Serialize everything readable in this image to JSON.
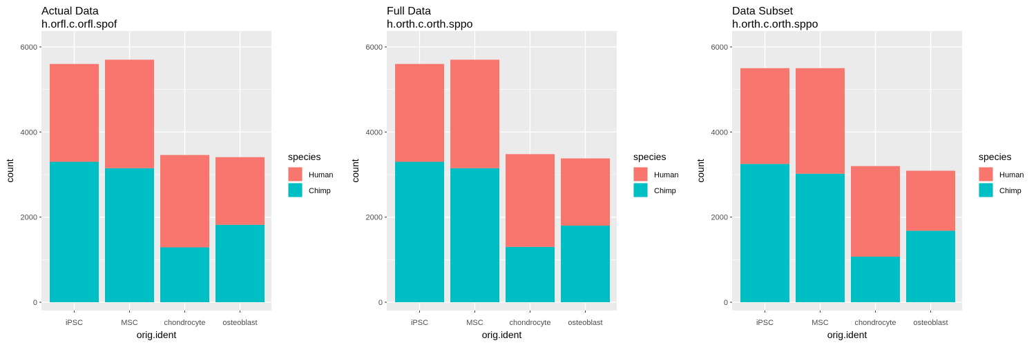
{
  "chart_data": [
    {
      "type": "bar",
      "stacked": true,
      "title": "Actual Data",
      "subtitle": "h.orfl.c.orfl.spof",
      "xlabel": "orig.ident",
      "ylabel": "count",
      "categories": [
        "iPSC",
        "MSC",
        "chondrocyte",
        "osteoblast"
      ],
      "series": [
        {
          "name": "Human",
          "values": [
            2300,
            2550,
            2170,
            1590
          ]
        },
        {
          "name": "Chimp",
          "values": [
            3300,
            3150,
            1290,
            1820
          ]
        }
      ],
      "ylim": [
        0,
        6000
      ],
      "yticks": [
        0,
        2000,
        4000,
        6000
      ],
      "legend_title": "species",
      "legend_position": "right",
      "grid": true
    },
    {
      "type": "bar",
      "stacked": true,
      "title": "Full Data",
      "subtitle": "h.orth.c.orth.sppo",
      "xlabel": "orig.ident",
      "ylabel": "count",
      "categories": [
        "iPSC",
        "MSC",
        "chondrocyte",
        "osteoblast"
      ],
      "series": [
        {
          "name": "Human",
          "values": [
            2300,
            2550,
            2180,
            1580
          ]
        },
        {
          "name": "Chimp",
          "values": [
            3300,
            3150,
            1300,
            1800
          ]
        }
      ],
      "ylim": [
        0,
        6000
      ],
      "yticks": [
        0,
        2000,
        4000,
        6000
      ],
      "legend_title": "species",
      "legend_position": "right",
      "grid": true
    },
    {
      "type": "bar",
      "stacked": true,
      "title": "Data Subset",
      "subtitle": "h.orth.c.orth.sppo",
      "xlabel": "orig.ident",
      "ylabel": "count",
      "categories": [
        "iPSC",
        "MSC",
        "chondrocyte",
        "osteoblast"
      ],
      "series": [
        {
          "name": "Human",
          "values": [
            2250,
            2480,
            2130,
            1410
          ]
        },
        {
          "name": "Chimp",
          "values": [
            3250,
            3020,
            1070,
            1680
          ]
        }
      ],
      "ylim": [
        0,
        6000
      ],
      "yticks": [
        0,
        2000,
        4000,
        6000
      ],
      "legend_title": "species",
      "legend_position": "right",
      "grid": true
    }
  ],
  "colors": {
    "Human": "#F8766D",
    "Chimp": "#00BFC4",
    "panel_background": "#EBEBEB",
    "grid": "#FFFFFF",
    "tick_label": "#4D4D4D",
    "text": "#000000"
  }
}
